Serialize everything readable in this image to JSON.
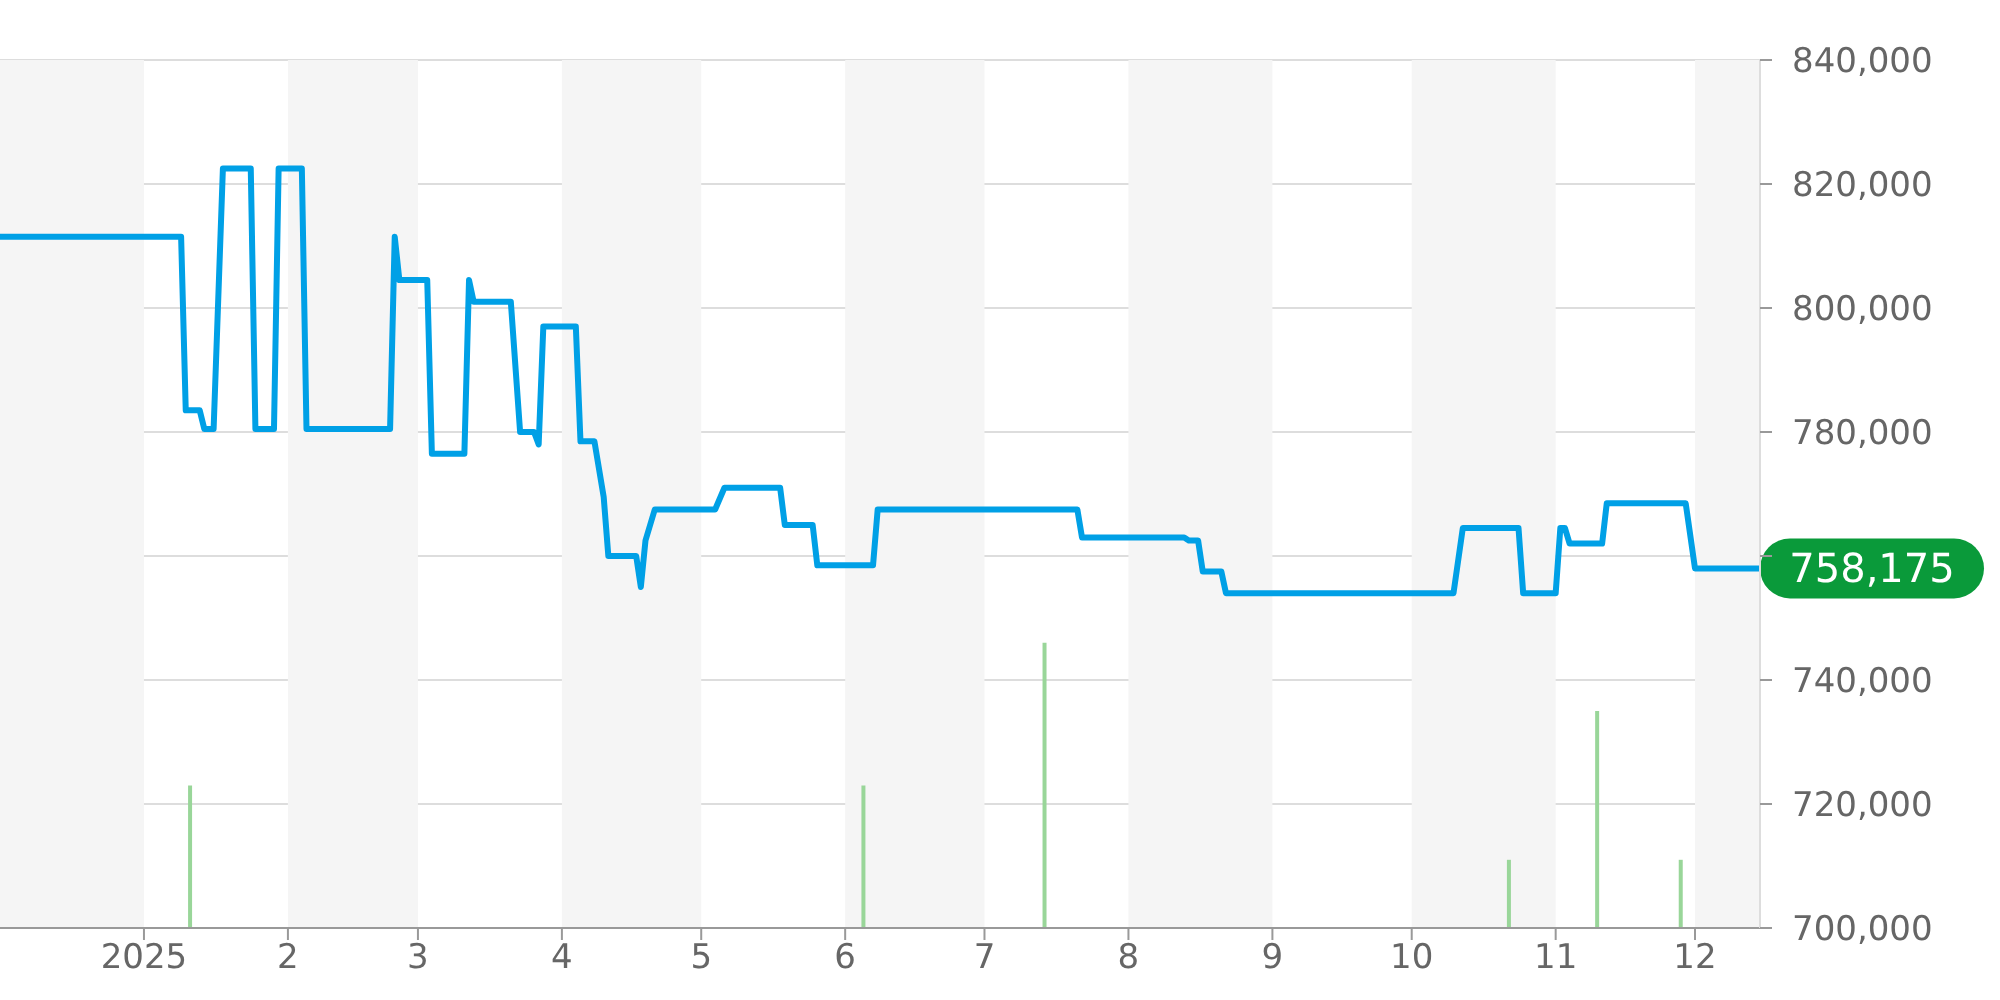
{
  "chart_data": {
    "type": "line",
    "xlim": [
      "2024-12-01",
      "2025-12-15"
    ],
    "xticks": [
      {
        "value": "2025-01-01",
        "label": "2025"
      },
      {
        "value": "2025-02-01",
        "label": "2"
      },
      {
        "value": "2025-03-01",
        "label": "3"
      },
      {
        "value": "2025-04-01",
        "label": "4"
      },
      {
        "value": "2025-05-01",
        "label": "5"
      },
      {
        "value": "2025-06-01",
        "label": "6"
      },
      {
        "value": "2025-07-01",
        "label": "7"
      },
      {
        "value": "2025-08-01",
        "label": "8"
      },
      {
        "value": "2025-09-01",
        "label": "9"
      },
      {
        "value": "2025-10-01",
        "label": "10"
      },
      {
        "value": "2025-11-01",
        "label": "11"
      },
      {
        "value": "2025-12-01",
        "label": "12"
      }
    ],
    "ylim": [
      700000,
      840000
    ],
    "yticks": [
      {
        "value": 700000,
        "label": "700,000"
      },
      {
        "value": 720000,
        "label": "720,000"
      },
      {
        "value": 740000,
        "label": "740,000"
      },
      {
        "value": 760000,
        "label": null
      },
      {
        "value": 780000,
        "label": "780,000"
      },
      {
        "value": 800000,
        "label": "800,000"
      },
      {
        "value": 820000,
        "label": "820,000"
      },
      {
        "value": 840000,
        "label": "840,000"
      }
    ],
    "grid": "y",
    "marker": "none",
    "bands": [
      {
        "axis": "x",
        "from": "2024-12-01",
        "to": "2025-01-01",
        "color": "#f5f5f5"
      },
      {
        "axis": "x",
        "from": "2025-02-01",
        "to": "2025-03-01",
        "color": "#f5f5f5"
      },
      {
        "axis": "x",
        "from": "2025-04-01",
        "to": "2025-05-01",
        "color": "#f5f5f5"
      },
      {
        "axis": "x",
        "from": "2025-06-01",
        "to": "2025-07-01",
        "color": "#f5f5f5"
      },
      {
        "axis": "x",
        "from": "2025-08-01",
        "to": "2025-09-01",
        "color": "#f5f5f5"
      },
      {
        "axis": "x",
        "from": "2025-10-01",
        "to": "2025-11-01",
        "color": "#f5f5f5"
      },
      {
        "axis": "x",
        "from": "2025-12-01",
        "to": "2025-12-15",
        "color": "#f5f5f5"
      }
    ],
    "annotations": [
      "758,175"
    ],
    "series": [
      {
        "type": "bar",
        "color": "#99d699",
        "x": [
          "2025-01-11",
          "2025-06-05",
          "2025-07-14",
          "2025-10-22",
          "2025-11-10",
          "2025-11-28"
        ],
        "values": [
          723000,
          723000,
          746000,
          711000,
          735000,
          711000
        ]
      },
      {
        "color": "#00a0e6",
        "x": [
          "2024-12-01",
          "2025-01-09",
          "2025-01-10",
          "2025-01-13",
          "2025-01-14",
          "2025-01-16",
          "2025-01-18",
          "2025-01-24",
          "2025-01-25",
          "2025-01-29",
          "2025-01-30",
          "2025-02-04",
          "2025-02-05",
          "2025-02-23",
          "2025-02-24",
          "2025-02-25",
          "2025-03-03",
          "2025-03-04",
          "2025-03-11",
          "2025-03-12",
          "2025-03-13",
          "2025-03-21",
          "2025-03-23",
          "2025-03-26",
          "2025-03-27",
          "2025-03-28",
          "2025-04-04",
          "2025-04-05",
          "2025-04-08",
          "2025-04-10",
          "2025-04-11",
          "2025-04-17",
          "2025-04-18",
          "2025-04-19",
          "2025-04-21",
          "2025-05-04",
          "2025-05-06",
          "2025-05-18",
          "2025-05-19",
          "2025-05-25",
          "2025-05-26",
          "2025-06-07",
          "2025-06-08",
          "2025-07-21",
          "2025-07-22",
          "2025-08-13",
          "2025-08-14",
          "2025-08-16",
          "2025-08-17",
          "2025-08-21",
          "2025-08-22",
          "2025-10-10",
          "2025-10-12",
          "2025-10-24",
          "2025-10-25",
          "2025-11-01",
          "2025-11-02",
          "2025-11-03",
          "2025-11-04",
          "2025-11-11",
          "2025-11-12",
          "2025-11-29",
          "2025-12-01",
          "2025-12-15"
        ],
        "values": [
          811500,
          811500,
          783500,
          783500,
          780500,
          780500,
          822500,
          822500,
          780500,
          780500,
          822500,
          822500,
          780500,
          780500,
          811500,
          804500,
          804500,
          776500,
          776500,
          804500,
          801000,
          801000,
          780000,
          780000,
          778000,
          797000,
          797000,
          778500,
          778500,
          769500,
          760000,
          760000,
          755000,
          762500,
          767500,
          767500,
          771000,
          771000,
          765000,
          765000,
          758500,
          758500,
          767500,
          767500,
          763000,
          763000,
          762500,
          762500,
          757500,
          757500,
          754000,
          754000,
          764500,
          764500,
          754000,
          754000,
          764500,
          764500,
          762000,
          762000,
          768500,
          768500,
          758000,
          758000
        ]
      }
    ]
  }
}
